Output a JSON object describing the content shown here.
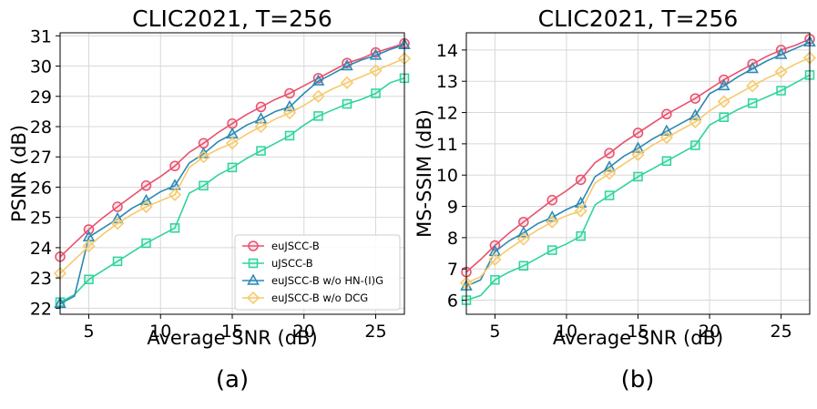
{
  "chart_data": [
    {
      "type": "line",
      "title": "CLIC2021, T=256",
      "xlabel": "Average SNR (dB)",
      "ylabel": "PSNR (dB)",
      "caption": "(a)",
      "xlim": [
        3,
        27
      ],
      "ylim": [
        21.8,
        31.1
      ],
      "xticks": [
        5,
        10,
        15,
        20,
        25
      ],
      "yticks": [
        22,
        23,
        24,
        25,
        26,
        27,
        28,
        29,
        30,
        31
      ],
      "legend_position": "lower-right",
      "series": [
        {
          "name": "euJSCC-B",
          "color": "#e8506e",
          "marker": "circle",
          "x": [
            3,
            4,
            5,
            6,
            7,
            8,
            9,
            10,
            11,
            12,
            13,
            14,
            15,
            16,
            17,
            18,
            19,
            20,
            21,
            22,
            23,
            24,
            25,
            26,
            27
          ],
          "y": [
            23.7,
            24.15,
            24.6,
            25.0,
            25.35,
            25.7,
            26.05,
            26.35,
            26.7,
            27.15,
            27.45,
            27.8,
            28.1,
            28.4,
            28.65,
            28.9,
            29.1,
            29.35,
            29.6,
            29.85,
            30.1,
            30.25,
            30.45,
            30.6,
            30.75
          ],
          "markers_at": [
            3,
            5,
            7,
            9,
            11,
            13,
            15,
            17,
            19,
            21,
            23,
            25,
            27
          ]
        },
        {
          "name": "uJSCC-B",
          "color": "#2fd49a",
          "marker": "square",
          "x": [
            3,
            4,
            5,
            6,
            7,
            8,
            9,
            10,
            11,
            12,
            13,
            14,
            15,
            16,
            17,
            18,
            19,
            20,
            21,
            22,
            23,
            24,
            25,
            26,
            27
          ],
          "y": [
            22.2,
            22.45,
            22.95,
            23.25,
            23.55,
            23.85,
            24.15,
            24.4,
            24.65,
            25.8,
            26.05,
            26.4,
            26.65,
            26.95,
            27.2,
            27.45,
            27.7,
            28.05,
            28.35,
            28.55,
            28.75,
            28.9,
            29.1,
            29.45,
            29.6
          ],
          "markers_at": [
            3,
            5,
            7,
            9,
            11,
            13,
            15,
            17,
            19,
            21,
            23,
            25,
            27
          ]
        },
        {
          "name": "euJSCC-B w/o HN-(I)G",
          "color": "#2b89b3",
          "marker": "triangle",
          "x": [
            3,
            4,
            5,
            6,
            7,
            8,
            9,
            10,
            11,
            12,
            13,
            14,
            15,
            16,
            17,
            18,
            19,
            20,
            21,
            22,
            23,
            24,
            25,
            26,
            27
          ],
          "y": [
            22.15,
            22.4,
            24.35,
            24.65,
            24.95,
            25.3,
            25.55,
            25.85,
            26.05,
            26.8,
            27.1,
            27.5,
            27.75,
            28.05,
            28.25,
            28.5,
            28.65,
            29.1,
            29.5,
            29.75,
            30.0,
            30.2,
            30.35,
            30.55,
            30.7
          ],
          "markers_at": [
            3,
            5,
            7,
            9,
            11,
            13,
            15,
            17,
            19,
            21,
            23,
            25,
            27
          ]
        },
        {
          "name": "euJSCC-B w/o DCG",
          "color": "#f6c96c",
          "marker": "diamond",
          "x": [
            3,
            4,
            5,
            6,
            7,
            8,
            9,
            10,
            11,
            12,
            13,
            14,
            15,
            16,
            17,
            18,
            19,
            20,
            21,
            22,
            23,
            24,
            25,
            26,
            27
          ],
          "y": [
            23.15,
            23.6,
            24.05,
            24.45,
            24.8,
            25.1,
            25.35,
            25.55,
            25.75,
            26.65,
            27.0,
            27.25,
            27.45,
            27.75,
            28.0,
            28.25,
            28.45,
            28.7,
            29.0,
            29.25,
            29.45,
            29.65,
            29.85,
            30.05,
            30.25
          ],
          "markers_at": [
            3,
            5,
            7,
            9,
            11,
            13,
            15,
            17,
            19,
            21,
            23,
            25,
            27
          ]
        }
      ]
    },
    {
      "type": "line",
      "title": "CLIC2021, T=256",
      "xlabel": "Average SNR (dB)",
      "ylabel": "MS-SSIM (dB)",
      "caption": "(b)",
      "xlim": [
        3,
        27
      ],
      "ylim": [
        5.55,
        14.55
      ],
      "xticks": [
        5,
        10,
        15,
        20,
        25
      ],
      "yticks": [
        6,
        7,
        8,
        9,
        10,
        11,
        12,
        13,
        14
      ],
      "series": [
        {
          "name": "euJSCC-B",
          "color": "#e8506e",
          "marker": "circle",
          "x": [
            3,
            4,
            5,
            6,
            7,
            8,
            9,
            10,
            11,
            12,
            13,
            14,
            15,
            16,
            17,
            18,
            19,
            20,
            21,
            22,
            23,
            24,
            25,
            26,
            27
          ],
          "y": [
            6.9,
            7.3,
            7.75,
            8.15,
            8.5,
            8.85,
            9.2,
            9.5,
            9.85,
            10.4,
            10.7,
            11.05,
            11.35,
            11.65,
            11.95,
            12.2,
            12.45,
            12.75,
            13.05,
            13.3,
            13.55,
            13.8,
            14.0,
            14.15,
            14.35
          ],
          "markers_at": [
            3,
            5,
            7,
            9,
            11,
            13,
            15,
            17,
            19,
            21,
            23,
            25,
            27
          ]
        },
        {
          "name": "uJSCC-B",
          "color": "#2fd49a",
          "marker": "square",
          "x": [
            3,
            4,
            5,
            6,
            7,
            8,
            9,
            10,
            11,
            12,
            13,
            14,
            15,
            16,
            17,
            18,
            19,
            20,
            21,
            22,
            23,
            24,
            25,
            26,
            27
          ],
          "y": [
            6.0,
            6.15,
            6.65,
            6.9,
            7.1,
            7.35,
            7.6,
            7.8,
            8.05,
            9.05,
            9.35,
            9.65,
            9.95,
            10.2,
            10.45,
            10.7,
            10.95,
            11.6,
            11.85,
            12.1,
            12.3,
            12.5,
            12.7,
            12.95,
            13.2
          ],
          "markers_at": [
            3,
            5,
            7,
            9,
            11,
            13,
            15,
            17,
            19,
            21,
            23,
            25,
            27
          ]
        },
        {
          "name": "euJSCC-B w/o HN-(I)G",
          "color": "#2b89b3",
          "marker": "triangle",
          "x": [
            3,
            4,
            5,
            6,
            7,
            8,
            9,
            10,
            11,
            12,
            13,
            14,
            15,
            16,
            17,
            18,
            19,
            20,
            21,
            22,
            23,
            24,
            25,
            26,
            27
          ],
          "y": [
            6.45,
            6.65,
            7.55,
            7.9,
            8.15,
            8.45,
            8.65,
            8.9,
            9.1,
            9.95,
            10.25,
            10.6,
            10.85,
            11.15,
            11.4,
            11.65,
            11.9,
            12.6,
            12.85,
            13.15,
            13.4,
            13.65,
            13.85,
            14.05,
            14.25
          ],
          "markers_at": [
            3,
            5,
            7,
            9,
            11,
            13,
            15,
            17,
            19,
            21,
            23,
            25,
            27
          ]
        },
        {
          "name": "euJSCC-B w/o DCG",
          "color": "#f6c96c",
          "marker": "diamond",
          "x": [
            3,
            4,
            5,
            6,
            7,
            8,
            9,
            10,
            11,
            12,
            13,
            14,
            15,
            16,
            17,
            18,
            19,
            20,
            21,
            22,
            23,
            24,
            25,
            26,
            27
          ],
          "y": [
            6.55,
            6.75,
            7.3,
            7.65,
            7.95,
            8.25,
            8.5,
            8.7,
            8.85,
            9.75,
            10.05,
            10.35,
            10.65,
            10.95,
            11.2,
            11.45,
            11.7,
            12.05,
            12.35,
            12.6,
            12.85,
            13.1,
            13.3,
            13.55,
            13.75
          ],
          "markers_at": [
            3,
            5,
            7,
            9,
            11,
            13,
            15,
            17,
            19,
            21,
            23,
            25,
            27
          ]
        }
      ]
    }
  ]
}
